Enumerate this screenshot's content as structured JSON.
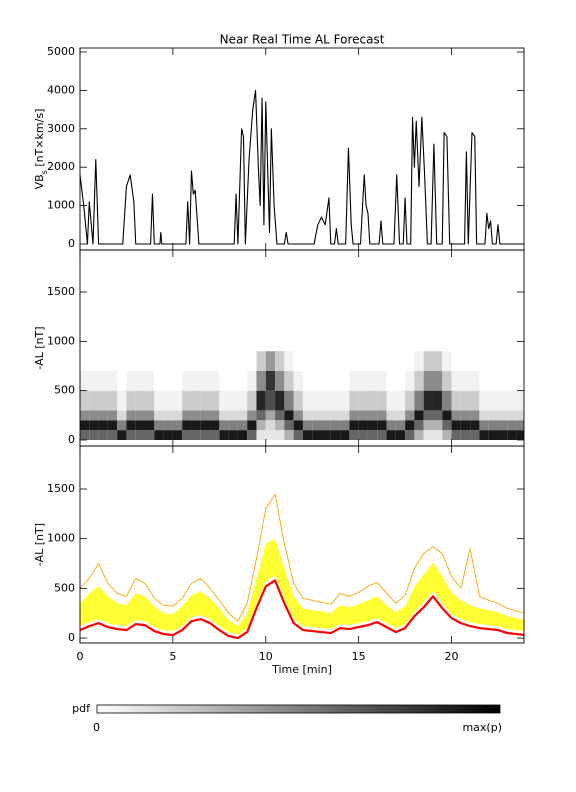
{
  "title": "Near Real Time AL Forecast",
  "chart_data": [
    {
      "type": "line",
      "ylabel": [
        "VB",
        "s",
        " [nT×km/s]"
      ],
      "xlim": [
        0,
        23.9
      ],
      "xticks": [
        0,
        5,
        10,
        15,
        20
      ],
      "ylim": [
        -156,
        5104
      ],
      "yticks": [
        0,
        1000,
        2000,
        3000,
        4000,
        5000
      ],
      "x": [
        0,
        0.2,
        0.4,
        0.5,
        0.7,
        0.85,
        1.0,
        2.3,
        2.5,
        2.7,
        2.9,
        3.0,
        3.8,
        3.9,
        4.0,
        4.3,
        4.35,
        4.4,
        5.7,
        5.8,
        5.9,
        6.0,
        6.1,
        6.2,
        6.4,
        8.3,
        8.4,
        8.5,
        8.7,
        8.8,
        8.9,
        9.1,
        9.3,
        9.45,
        9.6,
        9.7,
        9.8,
        9.9,
        10.0,
        10.1,
        10.2,
        10.3,
        10.45,
        10.6,
        11.0,
        11.1,
        11.2,
        12.6,
        12.8,
        13.0,
        13.2,
        13.4,
        13.5,
        13.7,
        13.8,
        13.9,
        14.3,
        14.45,
        14.6,
        14.7,
        15.1,
        15.3,
        15.4,
        15.5,
        15.6,
        16.1,
        16.2,
        16.3,
        16.9,
        17.05,
        17.2,
        17.4,
        17.5,
        17.6,
        17.8,
        17.9,
        18.0,
        18.1,
        18.25,
        18.4,
        18.55,
        18.7,
        18.9,
        19.05,
        19.2,
        19.5,
        19.6,
        19.75,
        19.9,
        20.7,
        20.8,
        20.9,
        21.1,
        21.25,
        21.35,
        21.8,
        21.9,
        22.0,
        22.1,
        22.2,
        22.4,
        22.5,
        22.6,
        24
      ],
      "series": [
        {
          "color": "#000000",
          "values": [
            1800,
            1000,
            0,
            1100,
            0,
            2200,
            0,
            0,
            1500,
            1800,
            1100,
            0,
            0,
            1300,
            0,
            0,
            300,
            0,
            0,
            1100,
            0,
            1900,
            1300,
            1400,
            0,
            0,
            1300,
            0,
            3000,
            2800,
            0,
            2200,
            3500,
            4000,
            2000,
            1000,
            3800,
            500,
            3700,
            2000,
            300,
            3000,
            1000,
            0,
            0,
            300,
            0,
            0,
            500,
            700,
            500,
            1200,
            0,
            0,
            400,
            0,
            0,
            2500,
            500,
            0,
            0,
            1800,
            1000,
            800,
            0,
            0,
            600,
            0,
            0,
            1800,
            0,
            0,
            1200,
            0,
            0,
            3300,
            2000,
            3200,
            1500,
            3300,
            1800,
            0,
            0,
            2600,
            0,
            0,
            2900,
            2800,
            0,
            0,
            2400,
            0,
            2900,
            2800,
            0,
            0,
            800,
            400,
            600,
            0,
            0,
            500,
            0,
            0
          ]
        }
      ]
    },
    {
      "type": "heatmap",
      "ylabel": "-AL [nT]",
      "xlim": [
        0,
        23.9
      ],
      "xticks": [
        0,
        5,
        10,
        15,
        20
      ],
      "ylim": [
        -61,
        1926
      ],
      "yticks": [
        0,
        500,
        1000,
        1500
      ],
      "color": "#000000",
      "x_edges": [
        0,
        0.5,
        1,
        1.5,
        2,
        2.5,
        3,
        3.5,
        4,
        4.5,
        5,
        5.5,
        6,
        6.5,
        7,
        7.5,
        8,
        8.5,
        9,
        9.5,
        10,
        10.5,
        11,
        11.5,
        12,
        12.5,
        13,
        13.5,
        14,
        14.5,
        15,
        15.5,
        16,
        16.5,
        17,
        17.5,
        18,
        18.5,
        19,
        19.5,
        20,
        20.5,
        21,
        21.5,
        22,
        22.5,
        23,
        23.5,
        24
      ],
      "y_edges": [
        0,
        100,
        200,
        300,
        500,
        700,
        900
      ],
      "density": [
        [
          0.6,
          0.6,
          0.6,
          0.6,
          0.9,
          0.6,
          0.6,
          0.6,
          0.9,
          0.9,
          0.9,
          0.6,
          0.6,
          0.6,
          0.6,
          0.9,
          0.9,
          0.9,
          0.6,
          0.1,
          0.1,
          0.1,
          0.3,
          0.6,
          0.9,
          0.9,
          0.9,
          0.9,
          0.9,
          0.6,
          0.6,
          0.6,
          0.6,
          0.9,
          0.9,
          0.6,
          0.3,
          0.1,
          0.1,
          0.3,
          0.6,
          0.6,
          0.6,
          0.9,
          0.9,
          0.9,
          0.9,
          0.9
        ],
        [
          0.9,
          0.9,
          0.9,
          0.9,
          0.5,
          0.9,
          0.9,
          0.9,
          0.5,
          0.5,
          0.5,
          0.9,
          0.9,
          0.9,
          0.9,
          0.5,
          0.5,
          0.5,
          0.9,
          0.3,
          0.15,
          0.3,
          0.6,
          0.9,
          0.5,
          0.5,
          0.5,
          0.5,
          0.5,
          0.9,
          0.9,
          0.9,
          0.9,
          0.5,
          0.5,
          0.9,
          0.6,
          0.3,
          0.3,
          0.6,
          0.9,
          0.9,
          0.9,
          0.5,
          0.5,
          0.5,
          0.5,
          0.5
        ],
        [
          0.45,
          0.45,
          0.45,
          0.45,
          0.15,
          0.45,
          0.45,
          0.45,
          0.15,
          0.15,
          0.15,
          0.45,
          0.45,
          0.45,
          0.45,
          0.15,
          0.15,
          0.15,
          0.45,
          0.6,
          0.35,
          0.6,
          0.9,
          0.45,
          0.15,
          0.15,
          0.15,
          0.15,
          0.15,
          0.45,
          0.45,
          0.45,
          0.45,
          0.15,
          0.15,
          0.45,
          0.9,
          0.6,
          0.6,
          0.9,
          0.45,
          0.45,
          0.45,
          0.15,
          0.15,
          0.15,
          0.15,
          0.15
        ],
        [
          0.2,
          0.2,
          0.2,
          0.2,
          0.05,
          0.2,
          0.2,
          0.2,
          0.05,
          0.05,
          0.05,
          0.2,
          0.2,
          0.2,
          0.2,
          0.05,
          0.05,
          0.05,
          0.2,
          0.85,
          0.7,
          0.85,
          0.5,
          0.2,
          0.05,
          0.05,
          0.05,
          0.05,
          0.05,
          0.2,
          0.2,
          0.2,
          0.2,
          0.05,
          0.05,
          0.2,
          0.5,
          0.85,
          0.85,
          0.5,
          0.2,
          0.2,
          0.2,
          0.05,
          0.05,
          0.05,
          0.05,
          0.05
        ],
        [
          0.05,
          0.05,
          0.05,
          0.05,
          0,
          0.05,
          0.05,
          0.05,
          0,
          0,
          0,
          0.05,
          0.05,
          0.05,
          0.05,
          0,
          0,
          0,
          0.05,
          0.45,
          0.8,
          0.45,
          0.2,
          0.05,
          0,
          0,
          0,
          0,
          0,
          0.05,
          0.05,
          0.05,
          0.05,
          0,
          0,
          0.05,
          0.2,
          0.45,
          0.45,
          0.2,
          0.05,
          0.05,
          0.05,
          0,
          0,
          0,
          0,
          0
        ],
        [
          0,
          0,
          0,
          0,
          0,
          0,
          0,
          0,
          0,
          0,
          0,
          0,
          0,
          0,
          0,
          0,
          0,
          0,
          0,
          0.2,
          0.4,
          0.2,
          0.05,
          0,
          0,
          0,
          0,
          0,
          0,
          0,
          0,
          0,
          0,
          0,
          0,
          0,
          0.05,
          0.2,
          0.2,
          0.05,
          0,
          0,
          0,
          0,
          0,
          0,
          0,
          0
        ]
      ]
    },
    {
      "type": "band",
      "ylabel": "-AL [nT]",
      "xlabel": "Time [min]",
      "xlim": [
        0,
        23.9
      ],
      "xticks": [
        0,
        5,
        10,
        15,
        20
      ],
      "ylim": [
        -50,
        1933
      ],
      "yticks": [
        0,
        500,
        1000,
        1500
      ],
      "x": [
        0,
        0.5,
        1,
        1.5,
        2,
        2.5,
        3,
        3.5,
        4,
        4.5,
        5,
        5.5,
        6,
        6.5,
        7,
        7.5,
        8,
        8.5,
        9,
        9.5,
        10,
        10.5,
        11,
        11.5,
        12,
        12.5,
        13,
        13.5,
        14,
        14.5,
        15,
        15.5,
        16,
        16.5,
        17,
        17.5,
        18,
        18.5,
        19,
        19.5,
        20,
        20.5,
        21,
        21.5,
        22,
        22.5,
        23,
        23.5,
        24
      ],
      "series": [
        {
          "color": "#ffff33",
          "low": [
            120,
            160,
            190,
            150,
            130,
            120,
            180,
            170,
            110,
            80,
            70,
            120,
            210,
            230,
            190,
            120,
            60,
            30,
            100,
            340,
            570,
            630,
            400,
            190,
            120,
            110,
            100,
            90,
            140,
            130,
            150,
            170,
            200,
            150,
            100,
            140,
            260,
            360,
            470,
            350,
            240,
            190,
            160,
            140,
            130,
            120,
            90,
            80,
            70
          ],
          "high": [
            350,
            450,
            520,
            420,
            350,
            330,
            450,
            420,
            320,
            250,
            240,
            320,
            430,
            470,
            400,
            300,
            180,
            120,
            250,
            600,
            950,
            1000,
            700,
            420,
            300,
            280,
            270,
            250,
            330,
            310,
            340,
            380,
            420,
            330,
            260,
            320,
            520,
            640,
            760,
            620,
            460,
            380,
            330,
            300,
            280,
            260,
            220,
            200,
            180
          ]
        },
        {
          "color": "#ffa500",
          "values": [
            500,
            600,
            750,
            550,
            450,
            420,
            600,
            550,
            400,
            330,
            320,
            400,
            550,
            600,
            500,
            380,
            250,
            170,
            350,
            800,
            1300,
            1450,
            950,
            550,
            400,
            380,
            360,
            340,
            450,
            420,
            460,
            520,
            560,
            450,
            350,
            430,
            700,
            850,
            920,
            850,
            620,
            500,
            900,
            420,
            380,
            350,
            300,
            270,
            250
          ]
        },
        {
          "color": "#ff0000",
          "values": [
            80,
            120,
            150,
            110,
            90,
            80,
            140,
            130,
            70,
            40,
            30,
            80,
            170,
            190,
            150,
            80,
            20,
            0,
            60,
            300,
            520,
            580,
            350,
            150,
            80,
            70,
            60,
            50,
            100,
            90,
            110,
            130,
            160,
            110,
            60,
            100,
            220,
            310,
            420,
            300,
            200,
            150,
            120,
            100,
            90,
            80,
            50,
            40,
            30
          ]
        }
      ]
    }
  ],
  "colorbar": {
    "label": "pdf",
    "min_label": "0",
    "max_label": "max(p)"
  }
}
